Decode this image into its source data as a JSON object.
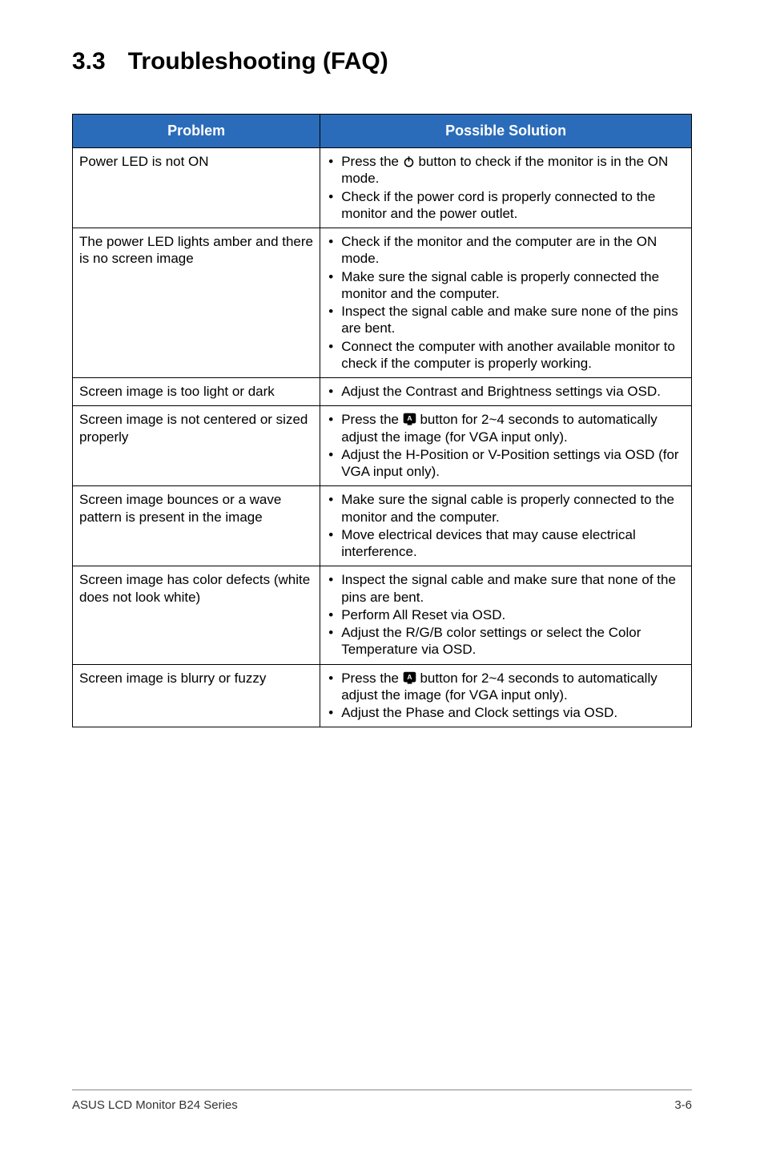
{
  "title": {
    "number": "3.3",
    "text": "Troubleshooting (FAQ)"
  },
  "table": {
    "headers": {
      "problem": "Problem",
      "solution": "Possible Solution"
    },
    "rows": [
      {
        "problem": "Power  LED is not ON",
        "solutions": [
          {
            "pre": "Press the ",
            "icon": "power",
            "post": " button to check if the monitor is in the ON mode."
          },
          {
            "text": "Check if the power cord is properly connected to the monitor and the power outlet."
          }
        ]
      },
      {
        "problem": "The power LED lights amber and there is no screen image",
        "solutions": [
          {
            "text": "Check if the monitor and the computer are in the ON mode."
          },
          {
            "text": "Make sure the signal cable is properly connected the monitor and the computer."
          },
          {
            "text": "Inspect the signal cable and make sure none of the pins are bent."
          },
          {
            "text": "Connect the computer with another available monitor to check if the computer is properly working."
          }
        ]
      },
      {
        "problem": "Screen image is too light or dark",
        "solutions": [
          {
            "text": "Adjust the Contrast and Brightness settings via OSD."
          }
        ]
      },
      {
        "problem": "Screen image is not centered or sized properly",
        "solutions": [
          {
            "pre": "Press the ",
            "icon": "auto",
            "post": "  button for 2~4 seconds to automatically adjust the image (for VGA input only)."
          },
          {
            "text": "Adjust the H-Position or V-Position settings via OSD (for VGA input only)."
          }
        ]
      },
      {
        "problem": "Screen image bounces or a wave pattern is present in the image",
        "solutions": [
          {
            "text": "Make sure the signal cable is properly connected to the monitor and the computer."
          },
          {
            "text": "Move electrical devices that may cause electrical interference."
          }
        ]
      },
      {
        "problem": "Screen image has color defects (white does not look white)",
        "solutions": [
          {
            "text": "Inspect the signal cable and make sure that none of the pins are bent."
          },
          {
            "text": "Perform All Reset via OSD."
          },
          {
            "text": "Adjust the R/G/B color settings or select the Color Temperature via OSD."
          }
        ]
      },
      {
        "problem": "Screen image is blurry or fuzzy",
        "solutions": [
          {
            "pre": "Press the ",
            "icon": "auto",
            "post": " button for 2~4 seconds to automatically adjust the image (for VGA input only)."
          },
          {
            "text": "Adjust the Phase and Clock settings via OSD."
          }
        ]
      }
    ]
  },
  "footer": {
    "left": "ASUS LCD Monitor B24 Series",
    "right": "3-6"
  },
  "colors": {
    "header_bg": "#2b6cba",
    "header_fg": "#ffffff",
    "border": "#000000",
    "text": "#000000",
    "footer_rule": "#888888"
  }
}
